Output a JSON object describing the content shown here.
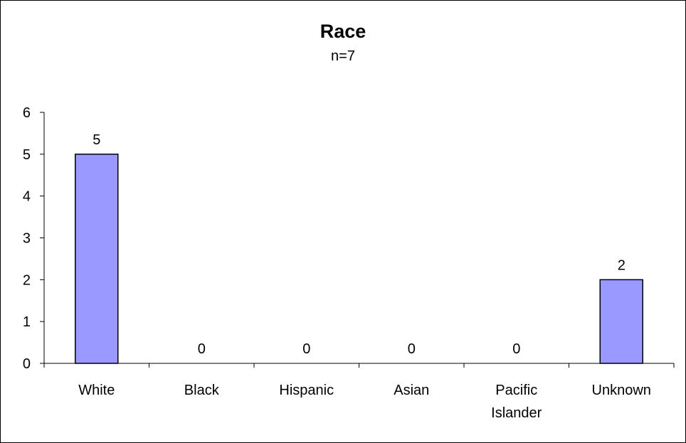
{
  "chart_data": {
    "type": "bar",
    "title": "Race",
    "subtitle": "n=7",
    "categories": [
      [
        "White"
      ],
      [
        "Black"
      ],
      [
        "Hispanic"
      ],
      [
        "Asian"
      ],
      [
        "Pacific",
        "Islander"
      ],
      [
        "Unknown"
      ]
    ],
    "values": [
      5,
      0,
      0,
      0,
      0,
      2
    ],
    "ylim": [
      0,
      6
    ],
    "yticks": [
      "0",
      "1",
      "2",
      "3",
      "4",
      "5",
      "6"
    ],
    "data_labels": [
      "5",
      "0",
      "0",
      "0",
      "0",
      "2"
    ],
    "grid": false,
    "legend": "none",
    "bar_color": "#9999ff",
    "bar_edge_color": "#000000"
  }
}
